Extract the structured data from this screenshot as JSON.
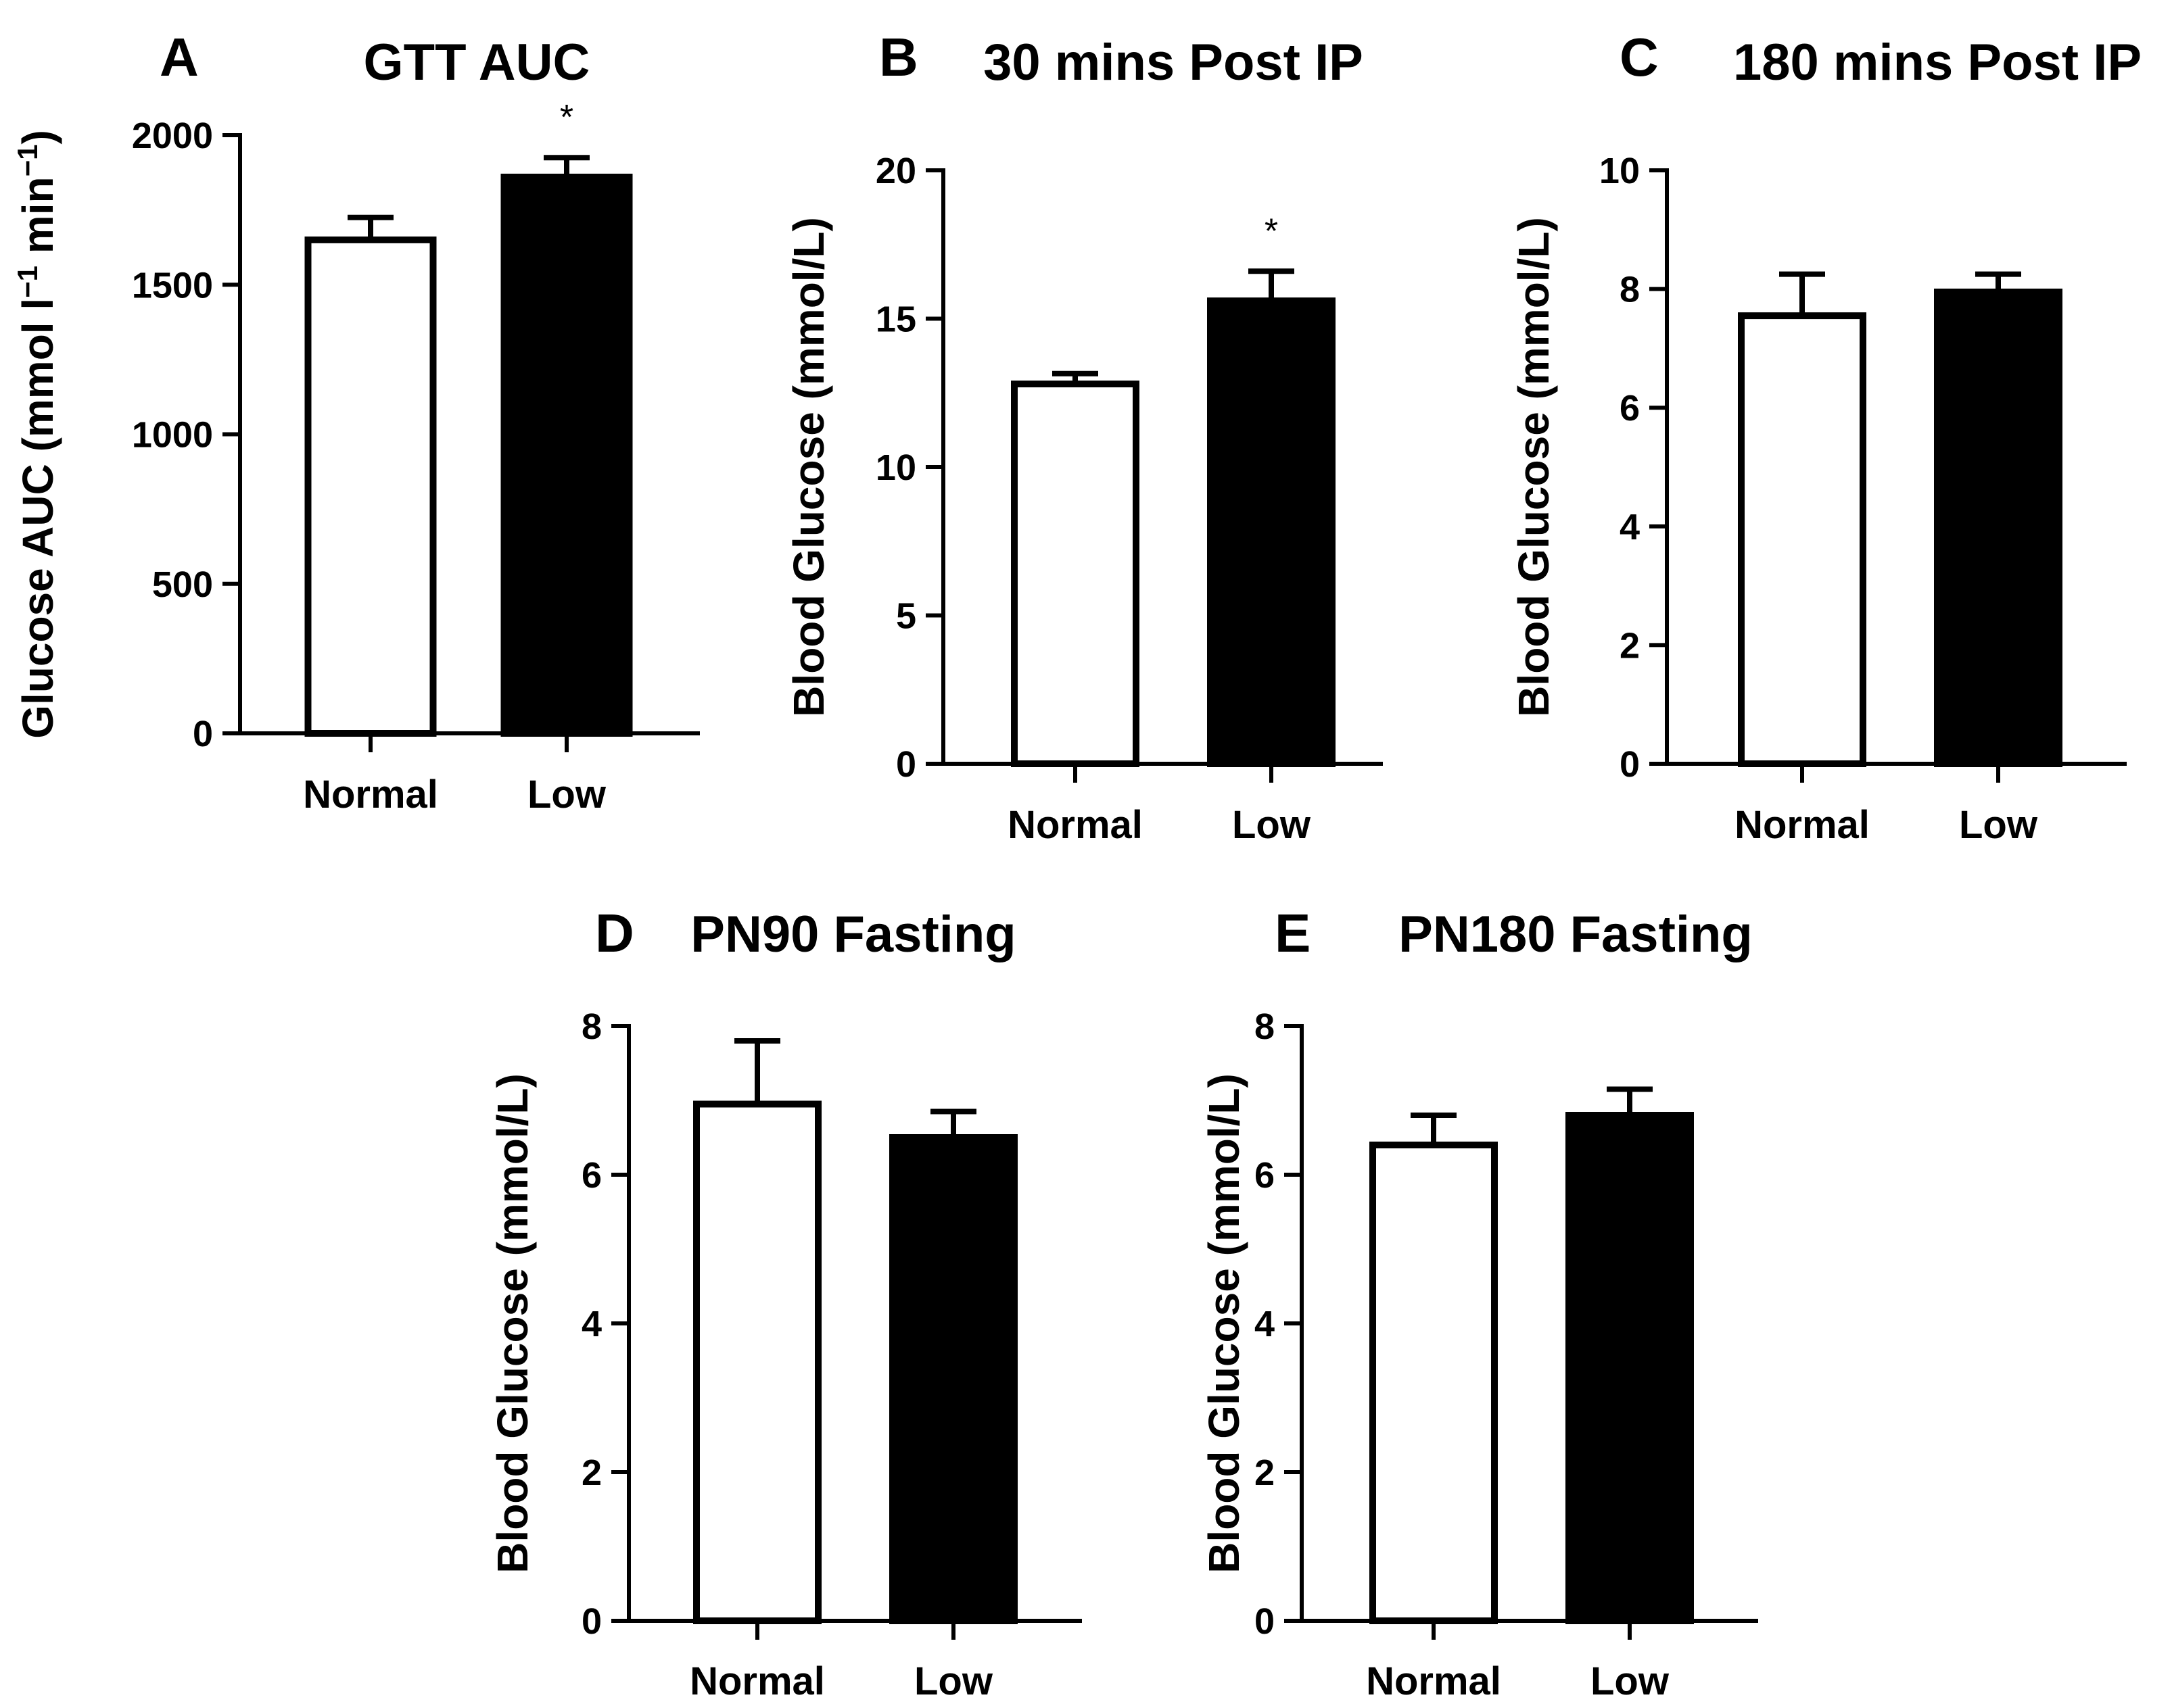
{
  "chart_data": [
    {
      "id": "A",
      "type": "bar",
      "letter": "A",
      "title": "GTT AUC",
      "xlabel": "",
      "ylabel": "Glucose AUC (mmol l",
      "ylabel_parts": [
        "Glucose AUC (mmol l",
        "−1",
        " min",
        "−1",
        ")"
      ],
      "categories": [
        "Normal",
        "Low"
      ],
      "values": [
        1650,
        1860
      ],
      "errors": [
        75,
        65
      ],
      "significance": [
        "",
        "*"
      ],
      "bar_fill": [
        "#ffffff",
        "#000000"
      ],
      "ylim": [
        0,
        2000
      ],
      "yticks": [
        0,
        500,
        1000,
        1500,
        2000
      ],
      "ytick_labels": [
        "0",
        "500",
        "1000",
        "1500",
        "2000"
      ]
    },
    {
      "id": "B",
      "type": "bar",
      "letter": "B",
      "title": "30 mins Post IP",
      "xlabel": "",
      "ylabel": "Blood Glucose (mmol/L)",
      "categories": [
        "Normal",
        "Low"
      ],
      "values": [
        12.8,
        15.6
      ],
      "errors": [
        0.35,
        1.0
      ],
      "significance": [
        "",
        "*"
      ],
      "bar_fill": [
        "#ffffff",
        "#000000"
      ],
      "ylim": [
        0,
        20
      ],
      "yticks": [
        0,
        5,
        10,
        15,
        20
      ],
      "ytick_labels": [
        "0",
        "5",
        "10",
        "15",
        "20"
      ]
    },
    {
      "id": "C",
      "type": "bar",
      "letter": "C",
      "title": "180 mins Post IP",
      "xlabel": "",
      "ylabel": "Blood Glucose (mmol/L)",
      "categories": [
        "Normal",
        "Low"
      ],
      "values": [
        7.55,
        7.95
      ],
      "errors": [
        0.7,
        0.3
      ],
      "significance": [
        "",
        ""
      ],
      "bar_fill": [
        "#ffffff",
        "#000000"
      ],
      "ylim": [
        0,
        10
      ],
      "yticks": [
        0,
        2,
        4,
        6,
        8,
        10
      ],
      "ytick_labels": [
        "0",
        "2",
        "4",
        "6",
        "8",
        "10"
      ]
    },
    {
      "id": "D",
      "type": "bar",
      "letter": "D",
      "title": "PN90 Fasting",
      "xlabel": "",
      "ylabel": "Blood Glucose (mmol/L)",
      "categories": [
        "Normal",
        "Low"
      ],
      "values": [
        6.95,
        6.5
      ],
      "errors": [
        0.85,
        0.35
      ],
      "significance": [
        "",
        ""
      ],
      "bar_fill": [
        "#ffffff",
        "#000000"
      ],
      "ylim": [
        0,
        8
      ],
      "yticks": [
        0,
        2,
        4,
        6,
        8
      ],
      "ytick_labels": [
        "0",
        "2",
        "4",
        "6",
        "8"
      ]
    },
    {
      "id": "E",
      "type": "bar",
      "letter": "E",
      "title": "PN180 Fasting",
      "xlabel": "",
      "ylabel": "Blood Glucose (mmol/L)",
      "categories": [
        "Normal",
        "Low"
      ],
      "values": [
        6.4,
        6.8
      ],
      "errors": [
        0.4,
        0.35
      ],
      "significance": [
        "",
        ""
      ],
      "bar_fill": [
        "#ffffff",
        "#000000"
      ],
      "ylim": [
        0,
        8
      ],
      "yticks": [
        0,
        2,
        4,
        6,
        8
      ],
      "ytick_labels": [
        "0",
        "2",
        "4",
        "6",
        "8"
      ]
    }
  ]
}
